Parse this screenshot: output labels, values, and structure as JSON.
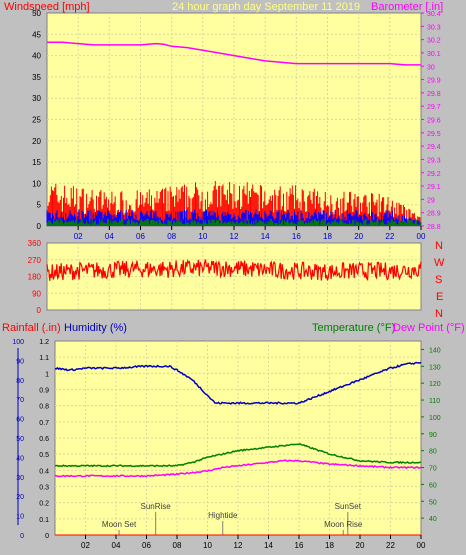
{
  "header": {
    "left_label": "Windspeed [mph]",
    "center_label": "24 hour graph day    September 11 2019",
    "right_label": "Barometer [.in]"
  },
  "labels": {
    "rain": "Rainfall (.in)",
    "humidity": "Humidity (%)",
    "temperature": "Temperature (°F)",
    "dewpoint": "Dew Point (°F)",
    "compass": [
      "N",
      "W",
      "S",
      "E",
      "N"
    ],
    "events": {
      "sunrise": "SunRise",
      "moonset": "Moon Set",
      "hightide": "Hightide",
      "sunset": "SunSet",
      "moonrise": "Moon Rise"
    }
  },
  "colors": {
    "plot_bg": "#ffffa0",
    "frame_bg": "#c0c0c0",
    "grid": "#d8d8a0",
    "wind_gust": "#ff0000",
    "wind_avg": "#0000ff",
    "wind_low": "#008000",
    "barometer": "#ff00ff",
    "direction": "#ff0000",
    "humidity": "#0000c0",
    "temperature": "#008000",
    "dewpoint": "#ff00ff"
  },
  "chart_data": [
    {
      "id": "wind-baro",
      "type": "line",
      "x_ticks": [
        "02",
        "04",
        "06",
        "08",
        "10",
        "12",
        "14",
        "16",
        "18",
        "20",
        "22",
        "00"
      ],
      "xlim": [
        0,
        24
      ],
      "ylim_left": [
        0,
        50
      ],
      "y_left_ticks": [
        "0",
        "5",
        "10",
        "15",
        "20",
        "25",
        "30",
        "35",
        "40",
        "45",
        "50"
      ],
      "ylim_right": [
        28.8,
        30.4
      ],
      "y_right_ticks": [
        "28.8",
        "28.9",
        "29",
        "29.1",
        "29.2",
        "29.3",
        "29.4",
        "29.5",
        "29.6",
        "29.7",
        "29.8",
        "29.9",
        "30",
        "30.1",
        "30.2",
        "30.3",
        "30.4"
      ],
      "series": [
        {
          "name": "Barometer",
          "axis": "right",
          "x": [
            0,
            1,
            2,
            3,
            4,
            5,
            6,
            7,
            7.5,
            8,
            9,
            10,
            11,
            12,
            13,
            14,
            15,
            16,
            17,
            18,
            19,
            20,
            21,
            22,
            23,
            24
          ],
          "values": [
            30.18,
            30.18,
            30.17,
            30.16,
            30.16,
            30.16,
            30.16,
            30.17,
            30.165,
            30.15,
            30.14,
            30.12,
            30.1,
            30.08,
            30.06,
            30.04,
            30.03,
            30.02,
            30.02,
            30.02,
            30.02,
            30.02,
            30.02,
            30.02,
            30.01,
            30.01
          ]
        },
        {
          "name": "Wind gust",
          "axis": "left",
          "x": [
            0,
            2,
            4,
            6,
            8,
            10,
            12,
            14,
            16,
            18,
            20,
            22,
            23,
            24
          ],
          "values": [
            9,
            8,
            7,
            7,
            8,
            9,
            9,
            8,
            8,
            7,
            7,
            6,
            4,
            2
          ]
        },
        {
          "name": "Wind speed",
          "axis": "left",
          "x": [
            0,
            2,
            4,
            6,
            8,
            10,
            12,
            14,
            16,
            18,
            20,
            22,
            23,
            24
          ],
          "values": [
            3,
            3,
            3,
            3,
            3,
            3,
            3,
            3,
            3,
            3,
            3,
            3,
            2,
            1
          ]
        },
        {
          "name": "Wind low",
          "axis": "left",
          "x": [
            0,
            4,
            8,
            12,
            16,
            20,
            24
          ],
          "values": [
            1,
            1,
            1,
            1,
            1,
            1,
            1
          ]
        }
      ]
    },
    {
      "id": "wind-direction",
      "type": "line",
      "x_ticks": [
        "02",
        "04",
        "06",
        "08",
        "10",
        "12",
        "14",
        "16",
        "18",
        "20",
        "22",
        "00"
      ],
      "xlim": [
        0,
        24
      ],
      "ylim": [
        0,
        360
      ],
      "y_ticks": [
        "0",
        "90",
        "180",
        "270",
        "360"
      ],
      "series": [
        {
          "name": "Direction",
          "x": [
            0,
            2,
            4,
            6,
            8,
            10,
            12,
            14,
            16,
            18,
            20,
            22,
            24
          ],
          "values": [
            200,
            210,
            215,
            220,
            220,
            225,
            225,
            215,
            210,
            205,
            210,
            210,
            220
          ]
        }
      ]
    },
    {
      "id": "rain-hum-temp",
      "type": "line",
      "x_ticks": [
        "02",
        "04",
        "06",
        "08",
        "10",
        "12",
        "14",
        "16",
        "18",
        "20",
        "22",
        "00"
      ],
      "xlim": [
        0,
        24
      ],
      "ylim_rain": [
        0,
        1.2
      ],
      "y_rain_ticks": [
        "0",
        "0.1",
        "0.2",
        "0.3",
        "0.4",
        "0.5",
        "0.6",
        "0.7",
        "0.8",
        "0.9",
        "1",
        "1.1",
        "1.2"
      ],
      "ylim_hum": [
        0,
        100
      ],
      "y_hum_ticks": [
        "0",
        "10",
        "20",
        "30",
        "40",
        "50",
        "60",
        "70",
        "80",
        "90",
        "100"
      ],
      "ylim_temp": [
        30,
        145
      ],
      "y_temp_ticks": [
        "40",
        "50",
        "60",
        "70",
        "80",
        "90",
        "100",
        "110",
        "120",
        "130",
        "140"
      ],
      "series": [
        {
          "name": "Humidity",
          "axis": "hum",
          "x": [
            0,
            1,
            2,
            4,
            6,
            7,
            7.5,
            8,
            9,
            10,
            10.5,
            11,
            12,
            13,
            14,
            15,
            16,
            17,
            18,
            19,
            20,
            21,
            22,
            23,
            24
          ],
          "values": [
            86,
            85,
            86,
            86,
            87,
            87,
            87,
            85,
            80,
            72,
            68,
            68,
            68,
            68,
            68,
            68,
            68,
            71,
            74,
            77,
            80,
            83,
            86,
            88,
            89
          ]
        },
        {
          "name": "Temperature",
          "axis": "temp",
          "x": [
            0,
            2,
            4,
            6,
            8,
            9,
            10,
            11,
            12,
            13,
            14,
            15,
            16,
            17,
            18,
            19,
            20,
            22,
            24
          ],
          "values": [
            71,
            71,
            71,
            71,
            71,
            73,
            76,
            78,
            80,
            81,
            82,
            83,
            84,
            81,
            78,
            76,
            74,
            73,
            73
          ]
        },
        {
          "name": "Dew Point",
          "axis": "temp",
          "x": [
            0,
            2,
            4,
            6,
            8,
            10,
            11,
            12,
            13,
            14,
            15,
            16,
            17,
            18,
            20,
            22,
            24
          ],
          "values": [
            65,
            65,
            65,
            65,
            66,
            68,
            70,
            71,
            72,
            73,
            74,
            74,
            73,
            72,
            71,
            70,
            70
          ]
        },
        {
          "name": "Rainfall",
          "axis": "rain",
          "x": [
            0,
            24
          ],
          "values": [
            0,
            0
          ]
        }
      ],
      "events": [
        {
          "label": "SunRise",
          "x": 6.6
        },
        {
          "label": "Moon Set",
          "x": 4.2
        },
        {
          "label": "Hightide",
          "x": 11.0
        },
        {
          "label": "SunSet",
          "x": 19.2
        },
        {
          "label": "Moon Rise",
          "x": 18.9
        }
      ]
    }
  ]
}
